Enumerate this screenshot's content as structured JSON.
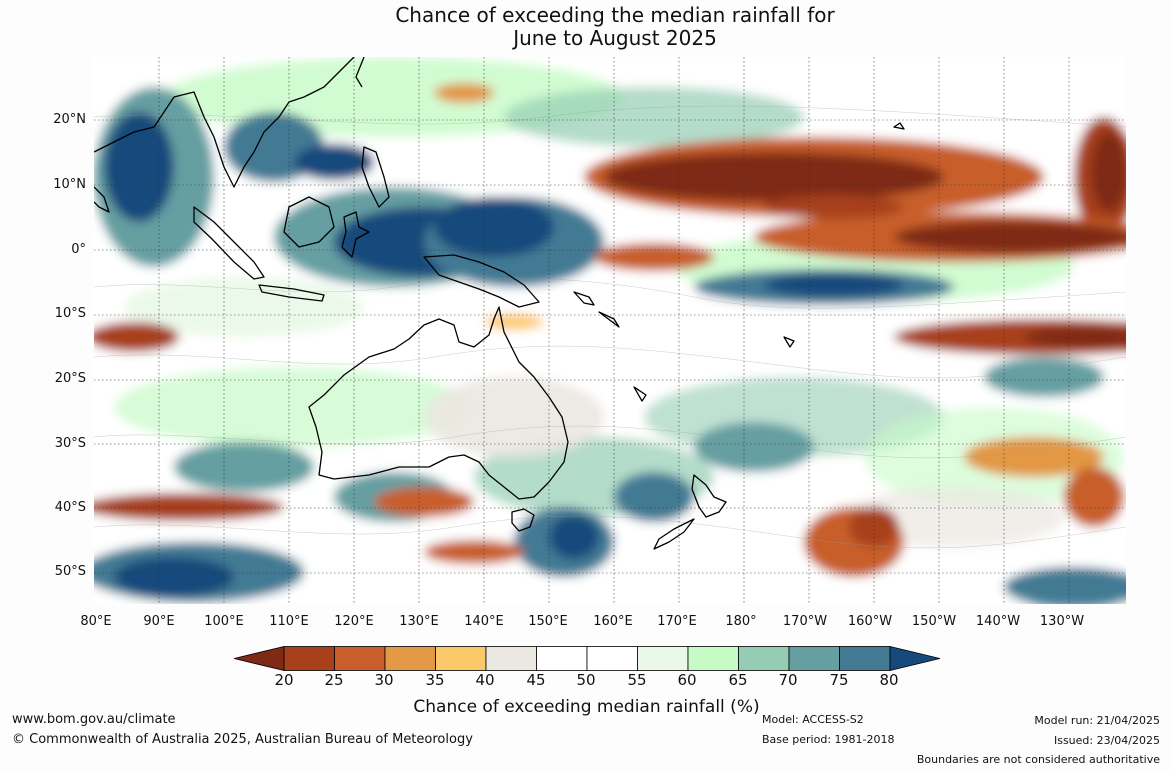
{
  "title": {
    "line1": "Chance of exceeding the median rainfall for",
    "line2": "June to August 2025"
  },
  "latitude_labels": [
    "20°N",
    "10°N",
    "0°",
    "10°S",
    "20°S",
    "30°S",
    "40°S",
    "50°S"
  ],
  "longitude_labels": [
    "80°E",
    "90°E",
    "100°E",
    "110°E",
    "120°E",
    "130°E",
    "140°E",
    "150°E",
    "160°E",
    "170°E",
    "180°",
    "170°W",
    "160°W",
    "150°W",
    "140°W",
    "130°W"
  ],
  "colorbar": {
    "ticks": [
      "20",
      "25",
      "30",
      "35",
      "40",
      "45",
      "50",
      "55",
      "60",
      "65",
      "70",
      "75",
      "80"
    ],
    "colors": [
      "#7f2a14",
      "#a8401c",
      "#c85f2c",
      "#e29845",
      "#fcc96a",
      "#ebe7e1",
      "#ffffff",
      "#ffffff",
      "#e9f8e8",
      "#c6fbc6",
      "#94cdb4",
      "#659fa2",
      "#437a94",
      "#164a7c"
    ],
    "label": "Chance of exceeding median rainfall (%)"
  },
  "footer": {
    "url": "www.bom.gov.au/climate",
    "copyright": "© Commonwealth of Australia 2025, Australian Bureau of Meteorology",
    "model": "Model: ACCESS-S2",
    "base_period": "Base period: 1981-2018",
    "model_run": "Model run: 21/04/2025",
    "issued": "Issued: 23/04/2025",
    "boundaries": "Boundaries are not considered authoritative"
  }
}
